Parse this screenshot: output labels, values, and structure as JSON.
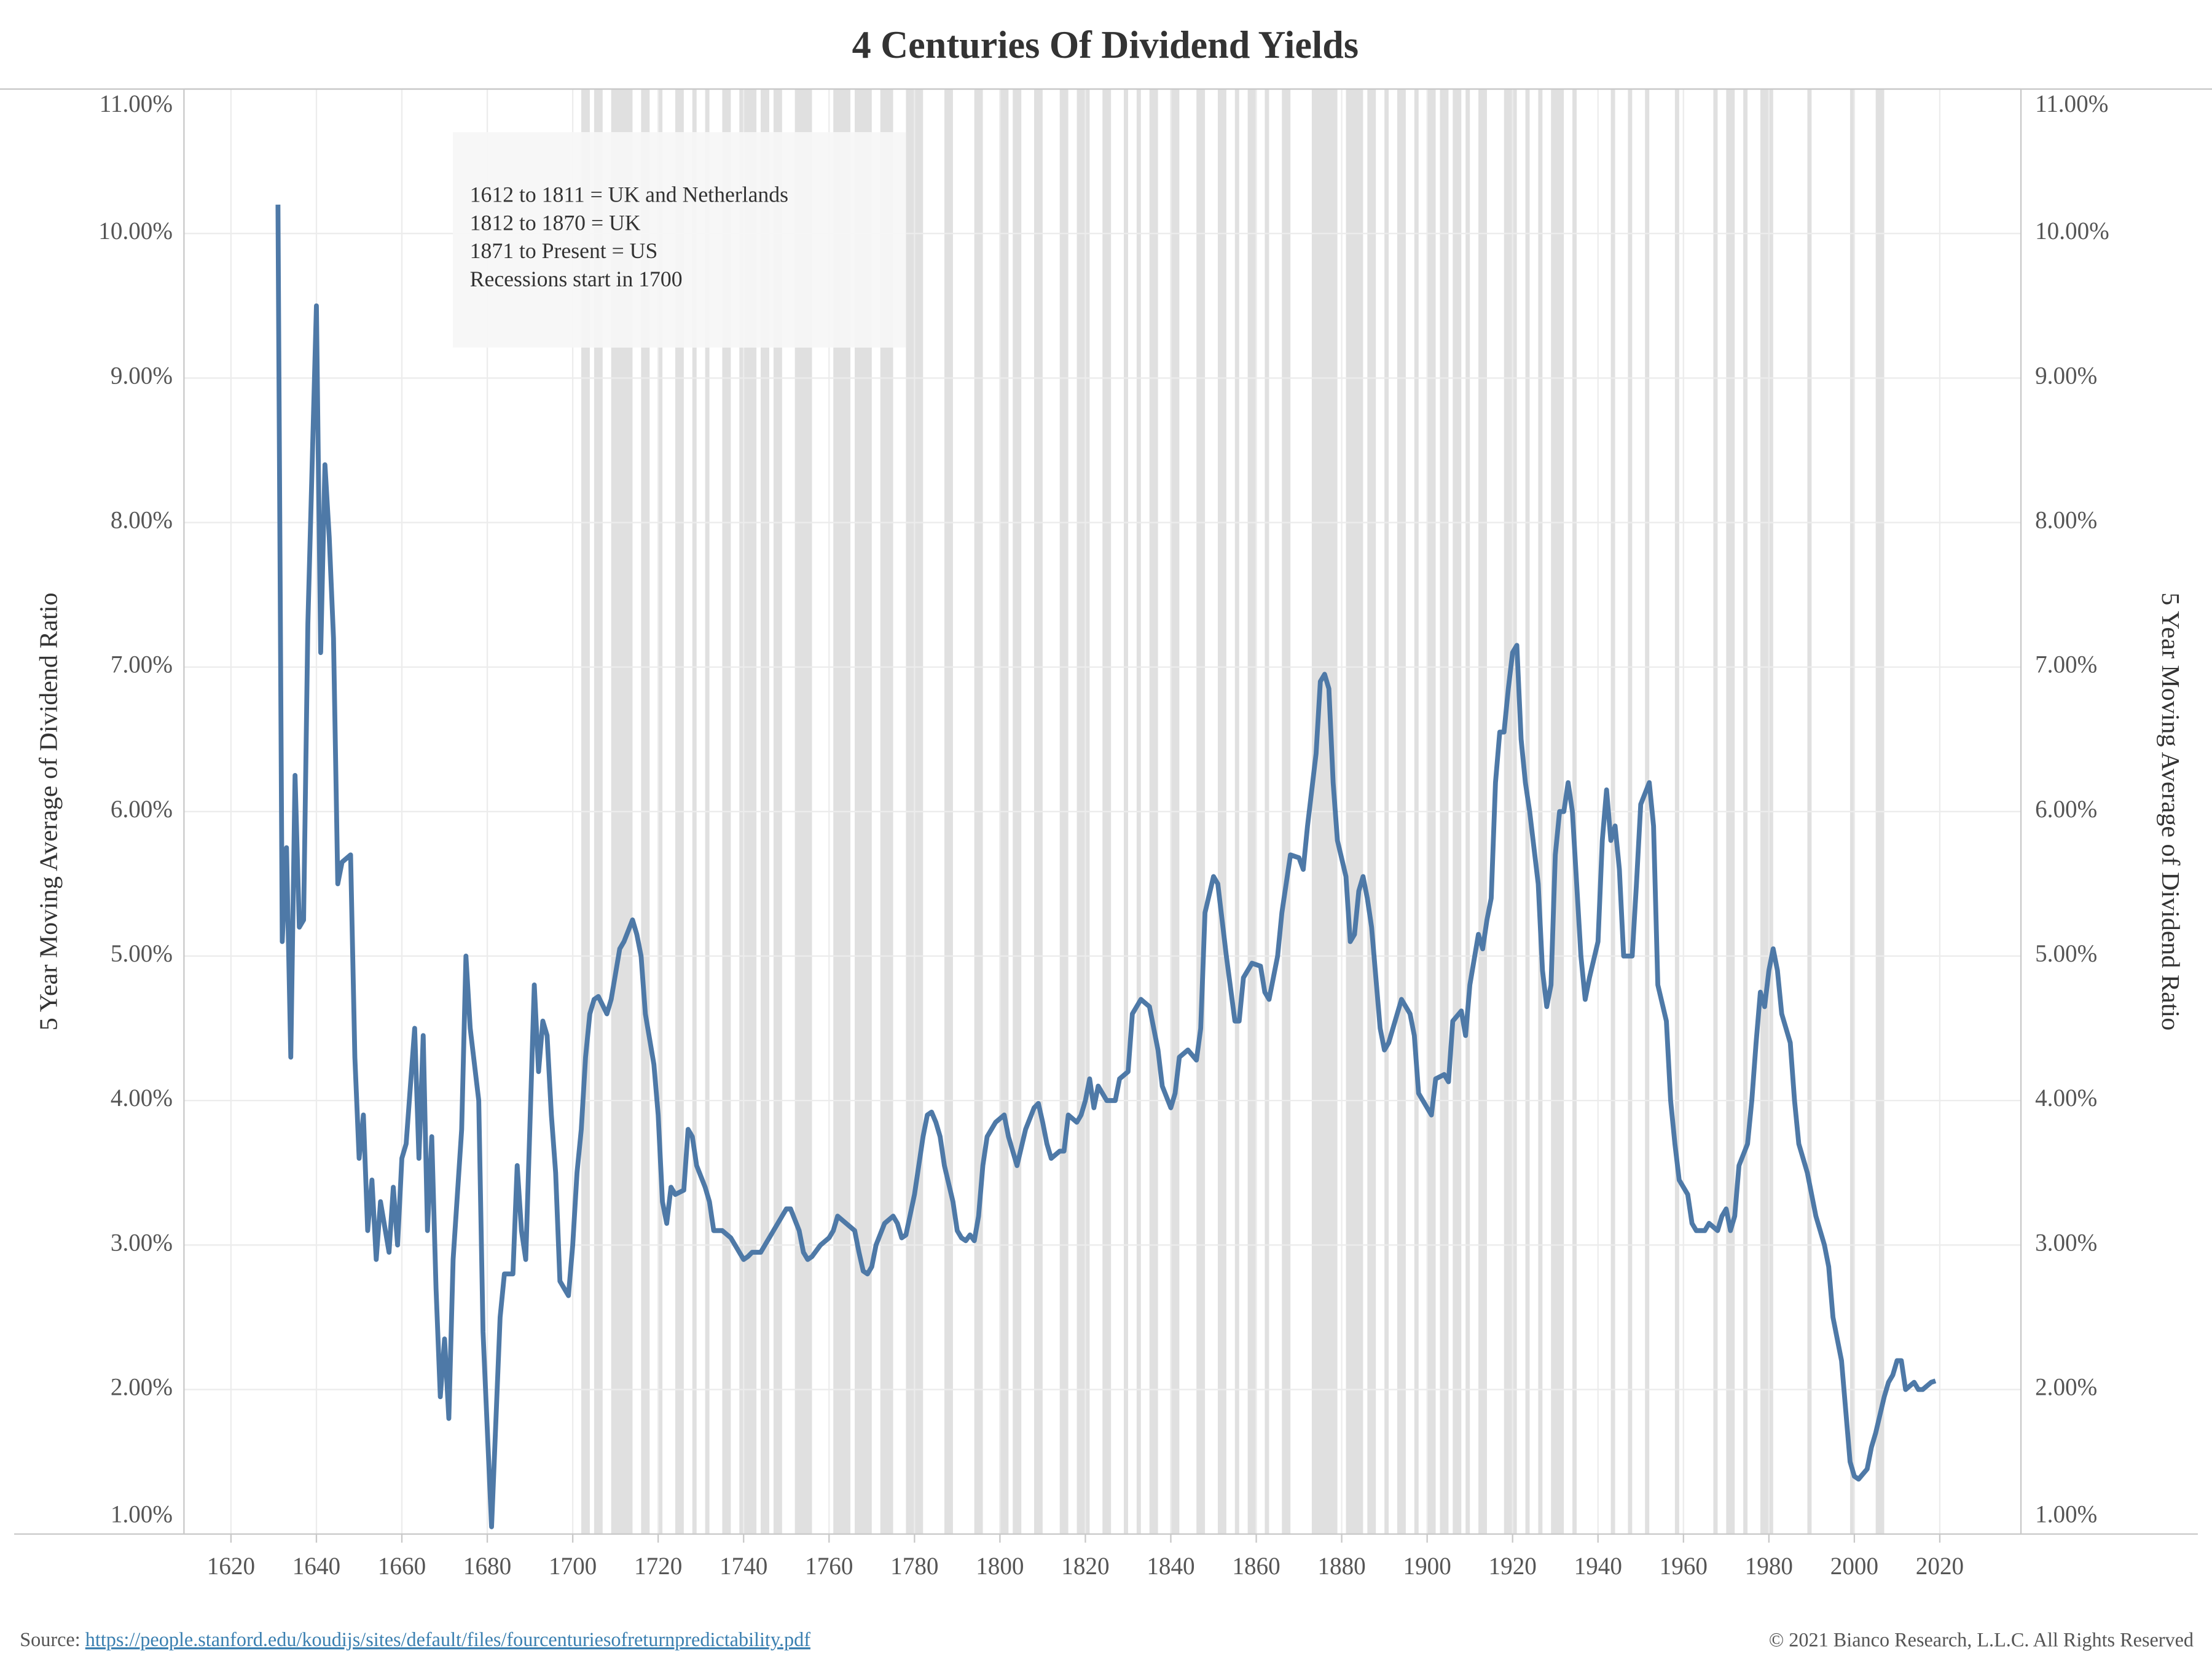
{
  "chart_data": {
    "type": "line",
    "title": "4 Centuries Of Dividend Yields",
    "y_label": "5 Year Moving Average of Dividend Ratio",
    "annotation": [
      "1612 to 1811 = UK and Netherlands",
      "1812 to 1870 = UK",
      "1871 to Present = US",
      "Recessions start in 1700"
    ],
    "color": "#4e79a7",
    "recession_color": "#e0e0e0",
    "grid": true,
    "xlim": [
      1609,
      2039
    ],
    "ylim": [
      1,
      11
    ],
    "xticks": [
      1620,
      1640,
      1660,
      1680,
      1700,
      1720,
      1740,
      1760,
      1780,
      1800,
      1820,
      1840,
      1860,
      1880,
      1900,
      1920,
      1940,
      1960,
      1980,
      2000,
      2020
    ],
    "yticks": [
      {
        "value": 1,
        "label": "1.00%"
      },
      {
        "value": 2,
        "label": "2.00%"
      },
      {
        "value": 3,
        "label": "3.00%"
      },
      {
        "value": 4,
        "label": "4.00%"
      },
      {
        "value": 5,
        "label": "5.00%"
      },
      {
        "value": 6,
        "label": "6.00%"
      },
      {
        "value": 7,
        "label": "7.00%"
      },
      {
        "value": 8,
        "label": "8.00%"
      },
      {
        "value": 9,
        "label": "9.00%"
      },
      {
        "value": 10,
        "label": "10.00%"
      },
      {
        "value": 11,
        "label": "11.00%"
      }
    ],
    "recessions": [
      [
        1702,
        1704
      ],
      [
        1705,
        1707
      ],
      [
        1709,
        1714
      ],
      [
        1716,
        1718
      ],
      [
        1720,
        1721
      ],
      [
        1724,
        1726
      ],
      [
        1728,
        1729
      ],
      [
        1731,
        1732
      ],
      [
        1735,
        1737
      ],
      [
        1739,
        1743
      ],
      [
        1744,
        1746
      ],
      [
        1747,
        1749
      ],
      [
        1752,
        1756
      ],
      [
        1761,
        1765
      ],
      [
        1766,
        1770
      ],
      [
        1772,
        1775
      ],
      [
        1778,
        1782
      ],
      [
        1787,
        1789
      ],
      [
        1794,
        1796
      ],
      [
        1800,
        1802
      ],
      [
        1803,
        1805
      ],
      [
        1808,
        1810
      ],
      [
        1814,
        1816
      ],
      [
        1818,
        1821
      ],
      [
        1824,
        1826
      ],
      [
        1829,
        1830
      ],
      [
        1832,
        1833
      ],
      [
        1835,
        1837
      ],
      [
        1840,
        1842
      ],
      [
        1846,
        1848
      ],
      [
        1851,
        1853
      ],
      [
        1855,
        1856
      ],
      [
        1858,
        1860
      ],
      [
        1862,
        1863
      ],
      [
        1866,
        1868
      ],
      [
        1873,
        1879
      ],
      [
        1881,
        1885
      ],
      [
        1886,
        1888
      ],
      [
        1890,
        1891
      ],
      [
        1893,
        1895
      ],
      [
        1897,
        1898
      ],
      [
        1900,
        1902
      ],
      [
        1903,
        1905
      ],
      [
        1906,
        1908
      ],
      [
        1909,
        1910
      ],
      [
        1912,
        1914
      ],
      [
        1918,
        1921
      ],
      [
        1923,
        1924
      ],
      [
        1926,
        1927
      ],
      [
        1929,
        1932
      ],
      [
        1934,
        1935
      ],
      [
        1943,
        1944
      ],
      [
        1947,
        1948
      ],
      [
        1951,
        1952
      ],
      [
        1958,
        1959
      ],
      [
        1967,
        1968
      ],
      [
        1970,
        1972
      ],
      [
        1974,
        1975
      ],
      [
        1978,
        1981
      ],
      [
        1989,
        1990
      ],
      [
        1999,
        2000
      ],
      [
        2005,
        2007
      ]
    ],
    "x": [
      1631,
      1632,
      1633,
      1634,
      1635,
      1636,
      1637,
      1638,
      1640,
      1641,
      1642,
      1643,
      1644,
      1645,
      1646,
      1648,
      1649,
      1650,
      1651,
      1652,
      1653,
      1654,
      1655,
      1657,
      1658,
      1659,
      1660,
      1661,
      1663,
      1664,
      1665,
      1666,
      1667,
      1668,
      1669,
      1670,
      1671,
      1672,
      1674,
      1675,
      1676,
      1678,
      1679,
      1681,
      1683,
      1684,
      1686,
      1687,
      1688,
      1689,
      1691,
      1692,
      1693,
      1694,
      1695,
      1696,
      1697,
      1699,
      1700,
      1701,
      1702,
      1703,
      1704,
      1705,
      1706,
      1708,
      1709,
      1711,
      1712,
      1714,
      1715,
      1716,
      1717,
      1719,
      1720,
      1721,
      1722,
      1723,
      1724,
      1726,
      1727,
      1728,
      1729,
      1731,
      1732,
      1733,
      1735,
      1737,
      1739,
      1740,
      1741,
      1742,
      1744,
      1746,
      1748,
      1749,
      1750,
      1751,
      1753,
      1754,
      1755,
      1756,
      1758,
      1760,
      1761,
      1762,
      1764,
      1766,
      1767,
      1768,
      1769,
      1770,
      1771,
      1773,
      1775,
      1776,
      1777,
      1778,
      1780,
      1782,
      1783,
      1784,
      1785,
      1786,
      1787,
      1789,
      1790,
      1791,
      1792,
      1793,
      1794,
      1795,
      1796,
      1797,
      1799,
      1801,
      1802,
      1804,
      1806,
      1808,
      1809,
      1810,
      1811,
      1812,
      1814,
      1815,
      1816,
      1818,
      1819,
      1820,
      1821,
      1822,
      1823,
      1825,
      1827,
      1828,
      1830,
      1831,
      1833,
      1835,
      1837,
      1838,
      1840,
      1841,
      1842,
      1844,
      1846,
      1847,
      1848,
      1850,
      1851,
      1853,
      1855,
      1856,
      1857,
      1859,
      1861,
      1862,
      1863,
      1865,
      1866,
      1868,
      1870,
      1871,
      1872,
      1874,
      1875,
      1876,
      1877,
      1878,
      1879,
      1881,
      1882,
      1883,
      1884,
      1885,
      1886,
      1887,
      1889,
      1890,
      1891,
      1893,
      1894,
      1896,
      1897,
      1898,
      1900,
      1901,
      1902,
      1904,
      1905,
      1906,
      1908,
      1909,
      1910,
      1912,
      1913,
      1914,
      1915,
      1916,
      1917,
      1918,
      1919,
      1920,
      1921,
      1922,
      1923,
      1924,
      1926,
      1927,
      1928,
      1929,
      1930,
      1931,
      1932,
      1933,
      1934,
      1935,
      1936,
      1937,
      1938,
      1940,
      1941,
      1942,
      1943,
      1944,
      1945,
      1946,
      1948,
      1949,
      1950,
      1952,
      1953,
      1954,
      1956,
      1957,
      1958,
      1959,
      1961,
      1962,
      1963,
      1965,
      1966,
      1968,
      1969,
      1970,
      1971,
      1972,
      1973,
      1975,
      1976,
      1977,
      1978,
      1979,
      1980,
      1981,
      1982,
      1983,
      1985,
      1986,
      1987,
      1989,
      1990,
      1991,
      1993,
      1994,
      1995,
      1997,
      1998,
      1999,
      2000,
      2001,
      2003,
      2004,
      2005,
      2007,
      2008,
      2009,
      2010,
      2011,
      2012,
      2014,
      2015,
      2016,
      2018,
      2019
    ],
    "series": [
      {
        "color": "#4e79a7",
        "values": [
          10.2,
          5.1,
          5.75,
          4.3,
          6.25,
          5.2,
          5.25,
          7.3,
          9.5,
          7.1,
          8.4,
          7.9,
          7.2,
          5.5,
          5.65,
          5.7,
          4.3,
          3.6,
          3.9,
          3.1,
          3.45,
          2.9,
          3.3,
          2.95,
          3.4,
          3.0,
          3.6,
          3.7,
          4.5,
          3.6,
          4.45,
          3.1,
          3.75,
          2.7,
          1.95,
          2.35,
          1.8,
          2.9,
          3.8,
          5.0,
          4.5,
          4.0,
          2.4,
          1.05,
          2.5,
          2.8,
          2.8,
          3.55,
          3.1,
          2.9,
          4.8,
          4.2,
          4.55,
          4.45,
          3.9,
          3.5,
          2.75,
          2.65,
          3.0,
          3.5,
          3.8,
          4.3,
          4.6,
          4.7,
          4.72,
          4.6,
          4.7,
          5.05,
          5.1,
          5.25,
          5.15,
          5.0,
          4.6,
          4.25,
          3.9,
          3.3,
          3.15,
          3.4,
          3.35,
          3.38,
          3.8,
          3.75,
          3.55,
          3.4,
          3.3,
          3.1,
          3.1,
          3.05,
          2.95,
          2.9,
          2.92,
          2.95,
          2.95,
          3.05,
          3.15,
          3.2,
          3.25,
          3.25,
          3.1,
          2.95,
          2.9,
          2.92,
          3.0,
          3.05,
          3.1,
          3.2,
          3.15,
          3.1,
          2.95,
          2.82,
          2.8,
          2.85,
          3.0,
          3.15,
          3.2,
          3.15,
          3.05,
          3.07,
          3.35,
          3.75,
          3.9,
          3.92,
          3.85,
          3.75,
          3.55,
          3.3,
          3.1,
          3.05,
          3.03,
          3.07,
          3.03,
          3.2,
          3.55,
          3.75,
          3.85,
          3.9,
          3.75,
          3.55,
          3.8,
          3.95,
          3.98,
          3.85,
          3.7,
          3.6,
          3.65,
          3.65,
          3.9,
          3.85,
          3.9,
          4.0,
          4.15,
          3.95,
          4.1,
          4.0,
          4.0,
          4.15,
          4.2,
          4.6,
          4.7,
          4.65,
          4.35,
          4.1,
          3.95,
          4.05,
          4.3,
          4.35,
          4.28,
          4.5,
          5.3,
          5.55,
          5.5,
          5.0,
          4.55,
          4.55,
          4.85,
          4.95,
          4.93,
          4.75,
          4.7,
          5.0,
          5.3,
          5.7,
          5.68,
          5.6,
          5.9,
          6.4,
          6.9,
          6.95,
          6.85,
          6.2,
          5.8,
          5.55,
          5.1,
          5.15,
          5.45,
          5.55,
          5.4,
          5.2,
          4.5,
          4.35,
          4.4,
          4.6,
          4.7,
          4.6,
          4.45,
          4.05,
          3.95,
          3.9,
          4.15,
          4.18,
          4.13,
          4.55,
          4.62,
          4.45,
          4.8,
          5.15,
          5.05,
          5.25,
          5.4,
          6.2,
          6.55,
          6.55,
          6.85,
          7.1,
          7.15,
          6.5,
          6.2,
          6.0,
          5.5,
          4.9,
          4.65,
          4.8,
          5.7,
          6.0,
          6.0,
          6.2,
          6.0,
          5.5,
          5.0,
          4.7,
          4.85,
          5.1,
          5.8,
          6.15,
          5.8,
          5.9,
          5.6,
          5.0,
          5.0,
          5.5,
          6.05,
          6.2,
          5.9,
          4.8,
          4.55,
          4.0,
          3.7,
          3.45,
          3.35,
          3.15,
          3.1,
          3.1,
          3.15,
          3.1,
          3.2,
          3.25,
          3.1,
          3.2,
          3.55,
          3.7,
          4.0,
          4.4,
          4.75,
          4.65,
          4.9,
          5.05,
          4.9,
          4.6,
          4.4,
          4.0,
          3.7,
          3.5,
          3.35,
          3.2,
          3.0,
          2.85,
          2.5,
          2.2,
          1.85,
          1.5,
          1.4,
          1.38,
          1.45,
          1.6,
          1.7,
          1.95,
          2.05,
          2.1,
          2.2,
          2.2,
          2.0,
          2.05,
          2.0,
          2.0,
          2.05,
          2.06
        ]
      }
    ]
  },
  "footer": {
    "source_label": "Source:",
    "source_url": "https://people.stanford.edu/koudijs/sites/default/files/fourcenturiesofreturnpredictability.pdf",
    "copyright": "© 2021 Bianco Research, L.L.C. All Rights Reserved"
  }
}
